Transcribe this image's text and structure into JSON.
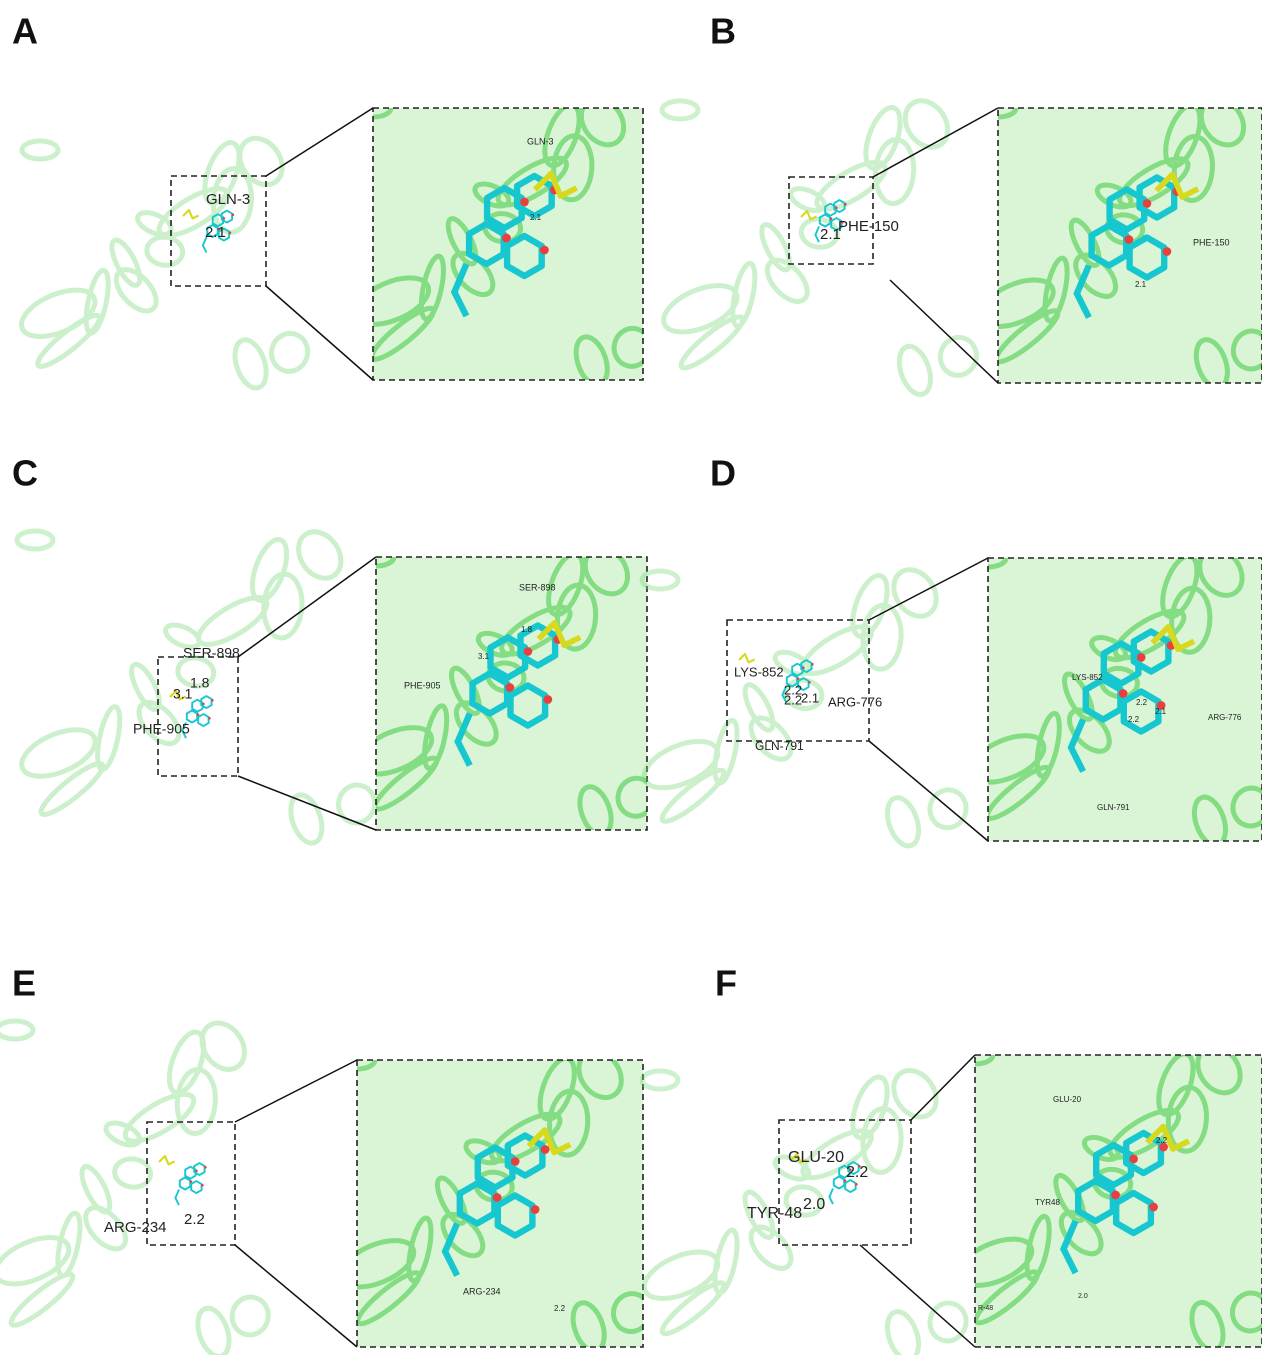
{
  "panels": [
    {
      "letter": "A",
      "overview_labels": [
        "GLN-3",
        "2.1"
      ],
      "zoom_labels": [
        "GLN-3",
        "2.1"
      ]
    },
    {
      "letter": "B",
      "overview_labels": [
        "PHE-150",
        "2.1"
      ],
      "zoom_labels": [
        "PHE-150",
        "2.1"
      ]
    },
    {
      "letter": "C",
      "overview_labels": [
        "SER-898",
        "1.8",
        "3.1",
        "PHE-905"
      ],
      "zoom_labels": [
        "SER-898",
        "1.8",
        "3.1",
        "PHE-905"
      ]
    },
    {
      "letter": "D",
      "overview_labels": [
        "LYS-852",
        "2.2",
        "2.2",
        "2.1",
        "ARG-776",
        "GLN-791"
      ],
      "zoom_labels": [
        "LYS-852",
        "2.2",
        "2.2",
        "2.1",
        "ARG-776",
        "GLN-791"
      ]
    },
    {
      "letter": "E",
      "overview_labels": [
        "ARG-234",
        "2.2"
      ],
      "zoom_labels": [
        "ARG-234",
        "2.2"
      ]
    },
    {
      "letter": "F",
      "overview_labels": [
        "GLU-20",
        "2.2",
        "TYR-48",
        "2.0"
      ],
      "zoom_labels": [
        "GLU-20",
        "2.2",
        "TYR48",
        "2.0",
        "R-48"
      ]
    }
  ]
}
